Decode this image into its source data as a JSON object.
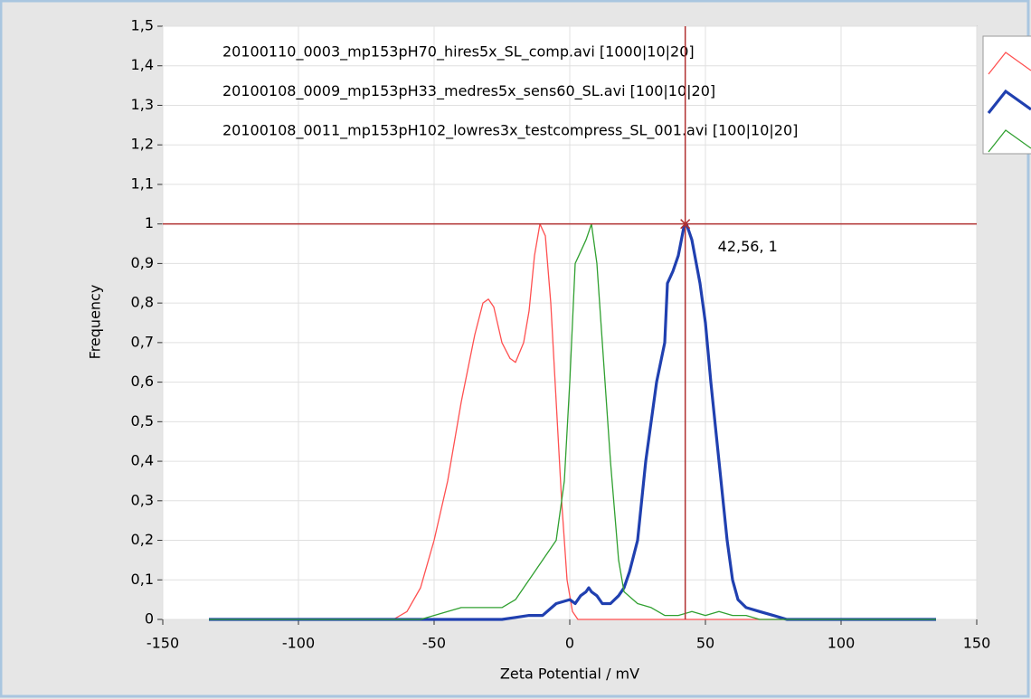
{
  "chart_data": {
    "type": "line",
    "x_label": "Zeta Potential / mV",
    "y_label": "Frequency",
    "xlim": [
      -150,
      150
    ],
    "ylim": [
      0,
      1.5
    ],
    "xticks": [
      -150,
      -100,
      -50,
      0,
      50,
      100,
      150
    ],
    "yticks": [
      0,
      {
        "value": 0.1,
        "label": "0,1"
      },
      {
        "value": 0.2,
        "label": "0,2"
      },
      {
        "value": 0.3,
        "label": "0,3"
      },
      {
        "value": 0.4,
        "label": "0,4"
      },
      {
        "value": 0.5,
        "label": "0,5"
      },
      {
        "value": 0.6,
        "label": "0,6"
      },
      {
        "value": 0.7,
        "label": "0,7"
      },
      {
        "value": 0.8,
        "label": "0,8"
      },
      {
        "value": 0.9,
        "label": "0,9"
      },
      1,
      {
        "value": 1.1,
        "label": "1,1"
      },
      {
        "value": 1.2,
        "label": "1,2"
      },
      {
        "value": 1.3,
        "label": "1,3"
      },
      {
        "value": 1.4,
        "label": "1,4"
      },
      {
        "value": 1.5,
        "label": "1,5"
      }
    ],
    "grid": true,
    "series": [
      {
        "name": "20100110_0003_mp153pH70_hires5x_SL_comp.avi [1000|10|20]",
        "color": "#ff5050",
        "width": 1.3,
        "x": [
          -133,
          -100,
          -80,
          -65,
          -60,
          -55,
          -50,
          -45,
          -40,
          -35,
          -32,
          -30,
          -28,
          -25,
          -22,
          -20,
          -17,
          -15,
          -13,
          -11,
          -9,
          -7,
          -5,
          -3,
          -1,
          1,
          3,
          50,
          100,
          135
        ],
        "values": [
          0,
          0,
          0,
          0,
          0.02,
          0.08,
          0.2,
          0.35,
          0.55,
          0.72,
          0.8,
          0.81,
          0.79,
          0.7,
          0.66,
          0.65,
          0.7,
          0.78,
          0.92,
          1,
          0.97,
          0.8,
          0.55,
          0.3,
          0.1,
          0.02,
          0,
          0,
          0,
          0
        ]
      },
      {
        "name": "20100108_0009_mp153pH33_medres5x_sens60_SL.avi [100|10|20]",
        "color": "#2040b0",
        "width": 3.2,
        "x": [
          -133,
          -100,
          -50,
          -25,
          -20,
          -15,
          -10,
          -5,
          0,
          2,
          4,
          6,
          7,
          8,
          10,
          12,
          15,
          18,
          20,
          22,
          25,
          28,
          30,
          32,
          35,
          36,
          38,
          40,
          42,
          43,
          44,
          45,
          48,
          50,
          52,
          55,
          58,
          60,
          62,
          65,
          70,
          75,
          80,
          100,
          135
        ],
        "values": [
          0,
          0,
          0,
          0,
          0.005,
          0.01,
          0.01,
          0.04,
          0.05,
          0.04,
          0.06,
          0.07,
          0.08,
          0.07,
          0.06,
          0.04,
          0.04,
          0.06,
          0.08,
          0.12,
          0.2,
          0.4,
          0.5,
          0.6,
          0.7,
          0.85,
          0.88,
          0.92,
          0.99,
          1,
          0.98,
          0.96,
          0.85,
          0.75,
          0.6,
          0.4,
          0.2,
          0.1,
          0.05,
          0.03,
          0.02,
          0.01,
          0,
          0,
          0
        ]
      },
      {
        "name": "20100108_0011_mp153pH102_lowres3x_testcompress_SL_001.avi [100|10|20]",
        "color": "#30a030",
        "width": 1.3,
        "x": [
          -133,
          -100,
          -55,
          -50,
          -45,
          -40,
          -30,
          -25,
          -20,
          -15,
          -10,
          -5,
          -2,
          0,
          2,
          4,
          6,
          7,
          8,
          10,
          12,
          15,
          18,
          20,
          25,
          30,
          35,
          40,
          45,
          50,
          55,
          60,
          65,
          70,
          80,
          100,
          135
        ],
        "values": [
          0,
          0,
          0,
          0.01,
          0.02,
          0.03,
          0.03,
          0.03,
          0.05,
          0.1,
          0.15,
          0.2,
          0.35,
          0.6,
          0.9,
          0.93,
          0.96,
          0.98,
          1,
          0.9,
          0.7,
          0.4,
          0.15,
          0.07,
          0.04,
          0.03,
          0.01,
          0.01,
          0.02,
          0.01,
          0.02,
          0.01,
          0.01,
          0,
          0,
          0,
          0
        ]
      }
    ],
    "cursor": {
      "x": 42.56,
      "y": 1,
      "label": "42,56, 1",
      "color": "#b03030"
    }
  }
}
